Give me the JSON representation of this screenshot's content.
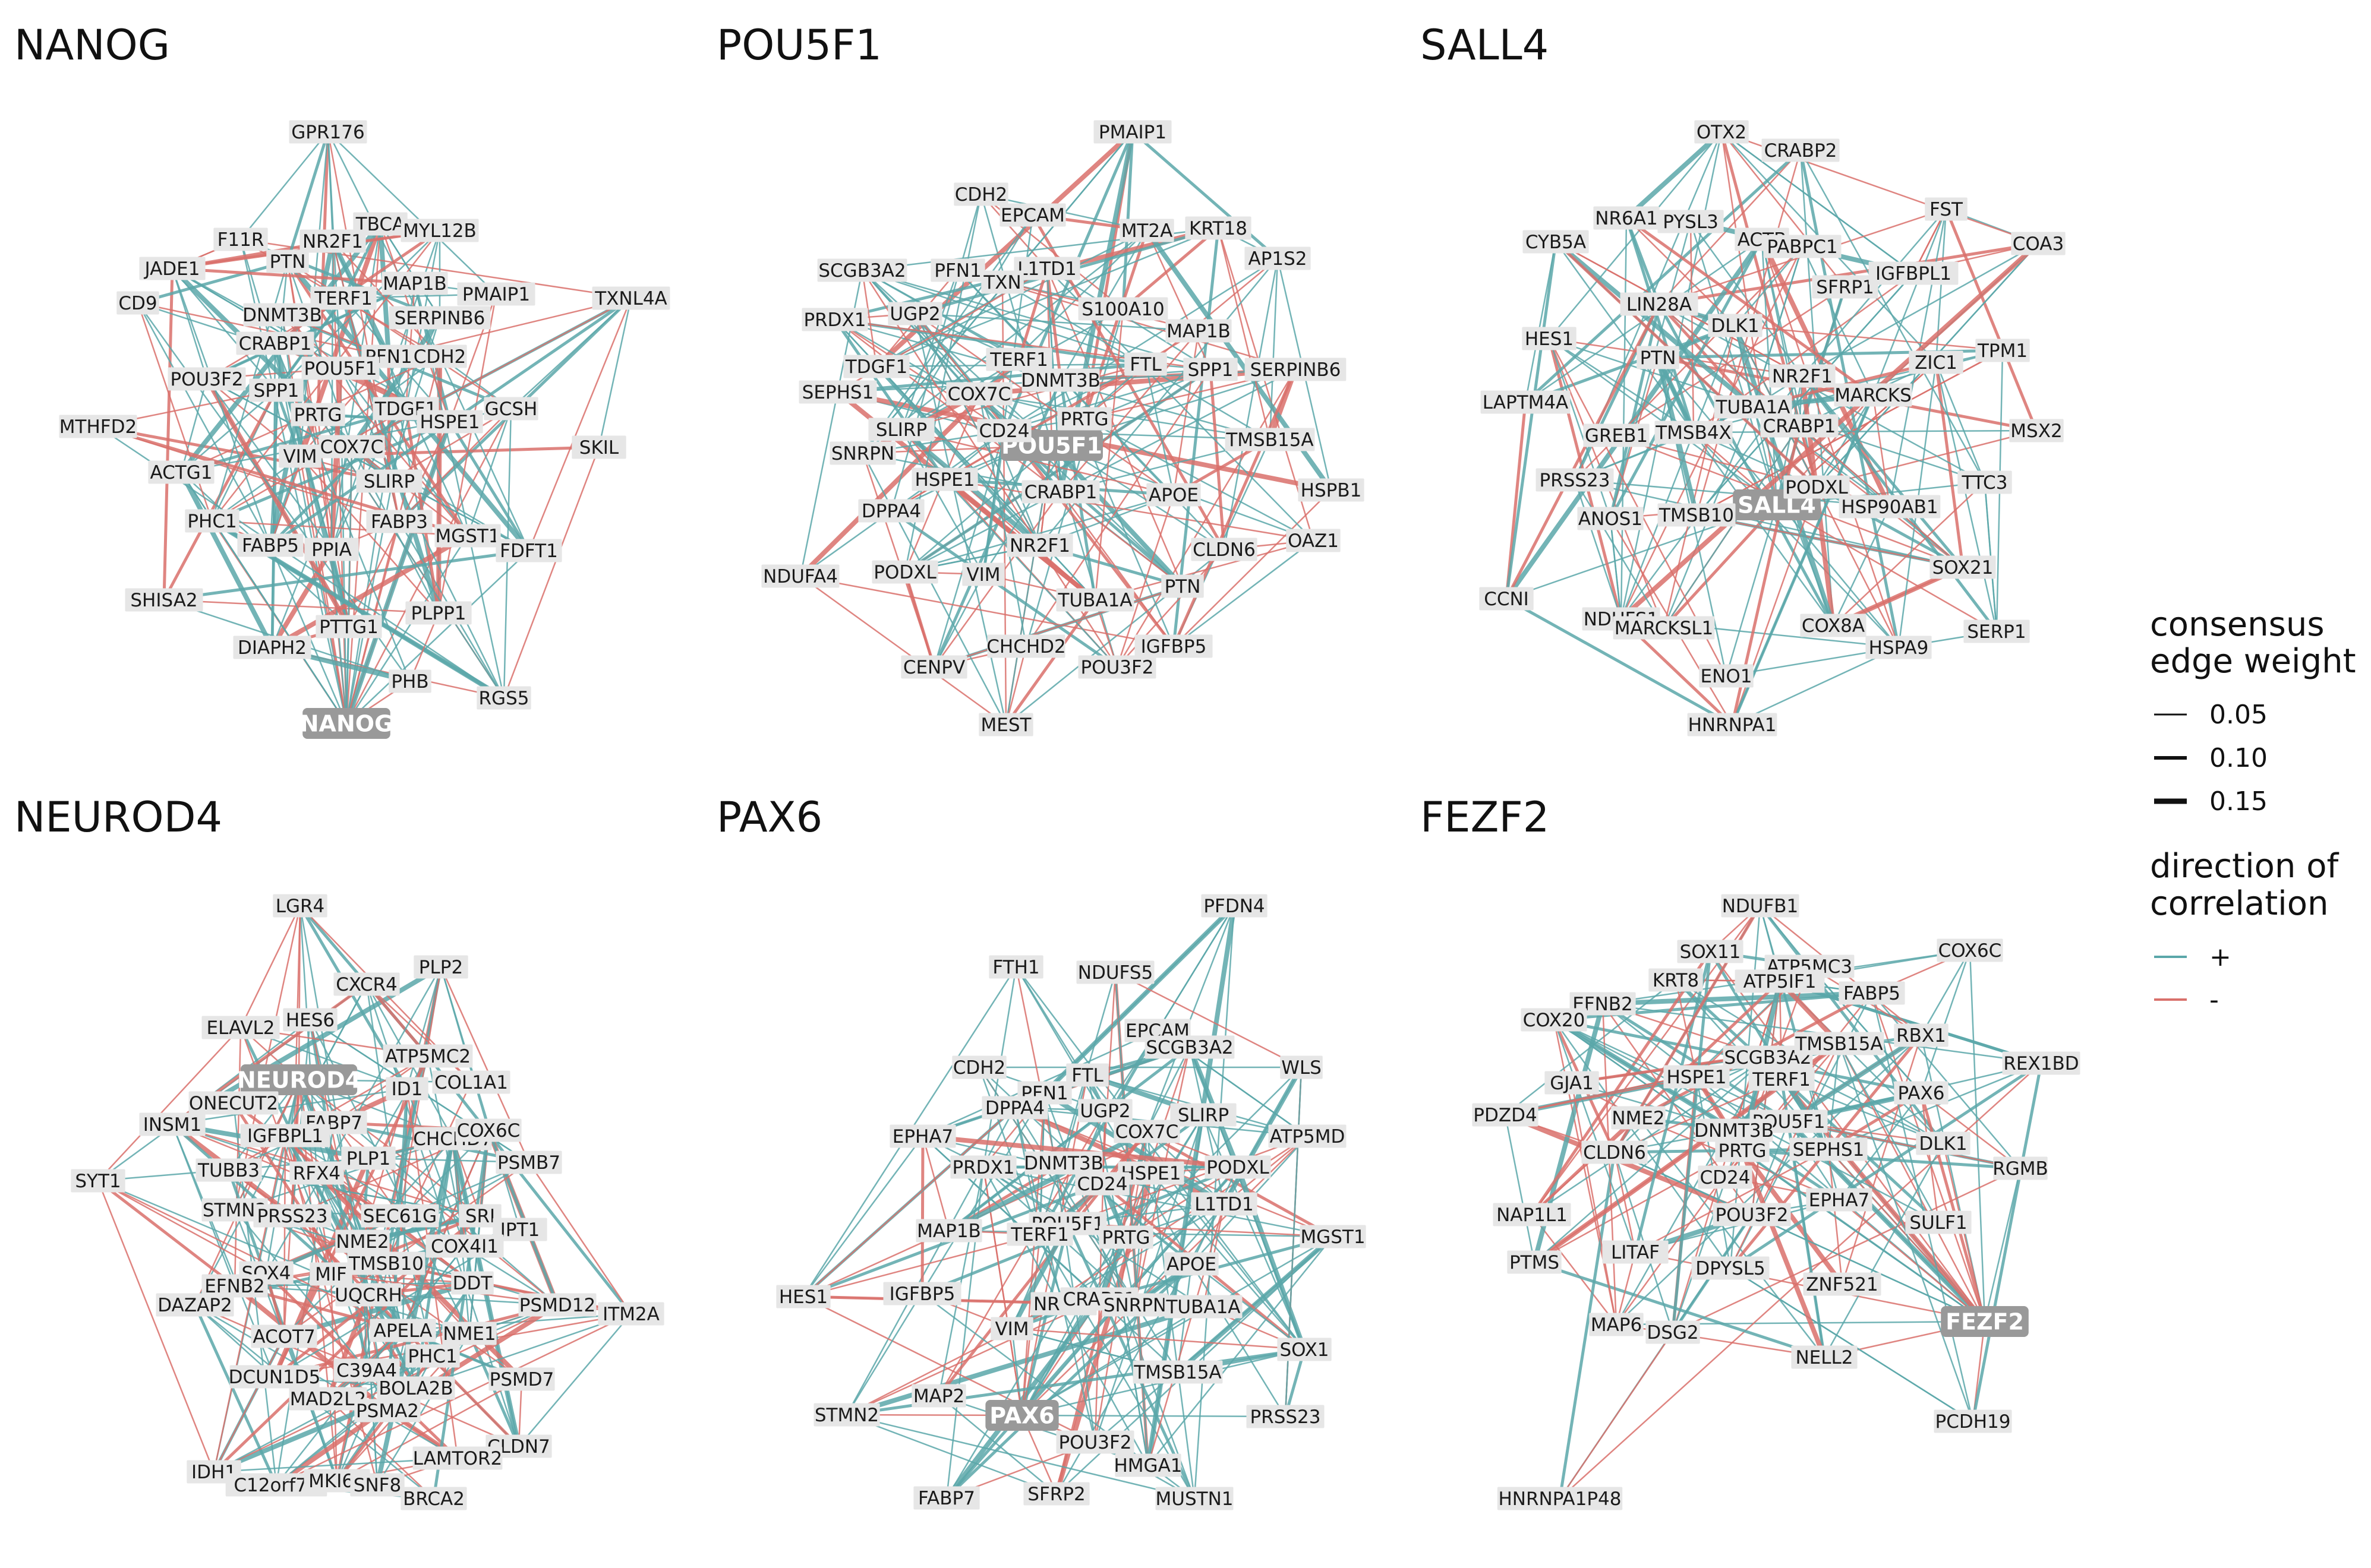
{
  "colors": {
    "positive": "#5AA7A9",
    "negative": "#D9706B",
    "label_bg": "#e6e6e6",
    "hub_bg": "#999999"
  },
  "legend": {
    "weight_title_1": "consensus",
    "weight_title_2": "edge weight",
    "weights": [
      "0.05",
      "0.10",
      "0.15"
    ],
    "direction_title_1": "direction of",
    "direction_title_2": "correlation",
    "directions": [
      {
        "label": "+",
        "color": "#5AA7A9"
      },
      {
        "label": "-",
        "color": "#D9706B"
      }
    ]
  },
  "panels": [
    {
      "title": "NANOG",
      "hub": "NANOG",
      "nodes": [
        "NANOG",
        "GPR176",
        "TBCA",
        "NR2F1",
        "MYL12B",
        "F11R",
        "JADE1",
        "PTN",
        "TERF1",
        "MAP1B",
        "PMAIP1",
        "TXNL4A",
        "CD9",
        "DNMT3B",
        "SERPINB6",
        "CRABP1",
        "PFN1",
        "CDH2",
        "POU3F2",
        "POU5F1",
        "SPP1",
        "GCSH",
        "MTHFD2",
        "PRTG",
        "TDGF1",
        "HSPE1",
        "SKIL",
        "VIM",
        "COX7C",
        "ACTG1",
        "SLIRP",
        "PHC1",
        "FABP3",
        "MGST1",
        "FDFT1",
        "FABP5",
        "PPIA",
        "SHISA2",
        "PLPP1",
        "PTTG1",
        "DIAPH2",
        "PHB",
        "RGS5"
      ]
    },
    {
      "title": "POU5F1",
      "hub": "POU5F1",
      "nodes": [
        "POU5F1",
        "PMAIP1",
        "CDH2",
        "EPCAM",
        "MT2A",
        "KRT18",
        "SCGB3A2",
        "PFN1",
        "L1TD1",
        "AP1S2",
        "TXN",
        "PRDX1",
        "UGP2",
        "S100A10",
        "MAP1B",
        "TERF1",
        "FTL",
        "TDGF1",
        "DNMT3B",
        "SPP1",
        "SERPINB6",
        "SEPHS1",
        "COX7C",
        "PRTG",
        "SLIRP",
        "CD24",
        "TMSB15A",
        "SNRPN",
        "HSPE1",
        "HSPB1",
        "CRABP1",
        "APOE",
        "DPPA4",
        "NR2F1",
        "CLDN6",
        "OAZ1",
        "NDUFA4",
        "PODXL",
        "VIM",
        "PTN",
        "TUBA1A",
        "CHCHD2",
        "IGFBP5",
        "CENPV",
        "POU3F2",
        "MEST"
      ]
    },
    {
      "title": "SALL4",
      "hub": "SALL4",
      "nodes": [
        "SALL4",
        "OTX2",
        "CRABP2",
        "FST",
        "NR6A1",
        "PYSL3",
        "ACTB",
        "COA3",
        "CYB5A",
        "PABPC1",
        "SFRP1",
        "IGFBPL1",
        "LIN28A",
        "DLK1",
        "HES1",
        "ZIC1",
        "TPM1",
        "PTN",
        "NR2F1",
        "LAPTM4A",
        "TUBA1A",
        "MARCKS",
        "GREB1",
        "TMSB4X",
        "CRABP1",
        "MSX2",
        "PRSS23",
        "PODXL",
        "TTC3",
        "ANOS1",
        "TMSB10",
        "HSP90AB1",
        "SOX21",
        "CCNI",
        "NDUFS1",
        "MARCKSL1",
        "COX8A",
        "SERP1",
        "HSPA9",
        "ENO1",
        "HNRNPA1"
      ]
    },
    {
      "title": "NEUROD4",
      "hub": "NEUROD4",
      "nodes": [
        "NEUROD4",
        "LGR4",
        "PLP2",
        "CXCR4",
        "ELAVL2",
        "HES6",
        "ATP5MC2",
        "ID1",
        "COL1A1",
        "ONECUT2",
        "FABP7",
        "INSM1",
        "IGFBPL1",
        "CHCHD7",
        "COX6C",
        "SYT1",
        "TUBB3",
        "RFX4",
        "PLP1",
        "PSMB7",
        "STMN2",
        "PRSS23",
        "SEC61G",
        "SRI",
        "JPT1",
        "NME2",
        "COX4I1",
        "SOX4",
        "MIF",
        "TMSB10",
        "EFNB2",
        "DDT",
        "PSMD12",
        "DAZAP2",
        "UQCRH",
        "ITM2A",
        "ACOT7",
        "APELA",
        "NME1",
        "PHC1",
        "DCUN1D5",
        "C39A4",
        "BOLA2B",
        "PSMD7",
        "MAD2L2",
        "PSMA2",
        "CLDN7",
        "IDH1",
        "C12orf75",
        "MKI67",
        "SNF8",
        "LAMTOR2",
        "BRCA2"
      ]
    },
    {
      "title": "PAX6",
      "hub": "PAX6",
      "nodes": [
        "PAX6",
        "PFDN4",
        "FTH1",
        "NDUFS5",
        "EPCAM",
        "SCGB3A2",
        "WLS",
        "CDH2",
        "PFN1",
        "FTL",
        "DPPA4",
        "UGP2",
        "SLIRP",
        "ATP5MD",
        "EPHA7",
        "COX7C",
        "PRDX1",
        "DNMT3B",
        "HSPE1",
        "PODXL",
        "CD24",
        "L1TD1",
        "MAP1B",
        "POU5F1",
        "TERF1",
        "PRTG",
        "MGST1",
        "APOE",
        "HES1",
        "IGFBP5",
        "NR2F1",
        "CRABP1",
        "SNRPN",
        "TUBA1A",
        "VIM",
        "SOX1",
        "TMSB15A",
        "MAP2",
        "STMN2",
        "PRSS23",
        "POU3F2",
        "HMGA1",
        "FABP7",
        "SFRP2",
        "MUSTN1"
      ]
    },
    {
      "title": "FEZF2",
      "hub": "FEZF2",
      "nodes": [
        "FEZF2",
        "NDUFB1",
        "SOX11",
        "COX6C",
        "ATP5MC3",
        "KRT8",
        "ATP5IF1",
        "FABP5",
        "EFNB2",
        "COX20",
        "RBX1",
        "REX1BD",
        "SCGB3A2",
        "TMSB15A",
        "GJA1",
        "HSPE1",
        "TERF1",
        "PAX6",
        "PDZD4",
        "NME2",
        "POU5F1",
        "DNMT3B",
        "CLDN6",
        "PRTG",
        "SEPHS1",
        "DLK1",
        "RGMB",
        "CD24",
        "EPHA7",
        "NAP1L1",
        "POU3F2",
        "SULF1",
        "PTMS",
        "LITAF",
        "DPYSL5",
        "ZNF521",
        "MAP6",
        "DSG2",
        "NELL2",
        "PCDH19",
        "HNRNPA1P48"
      ]
    }
  ]
}
